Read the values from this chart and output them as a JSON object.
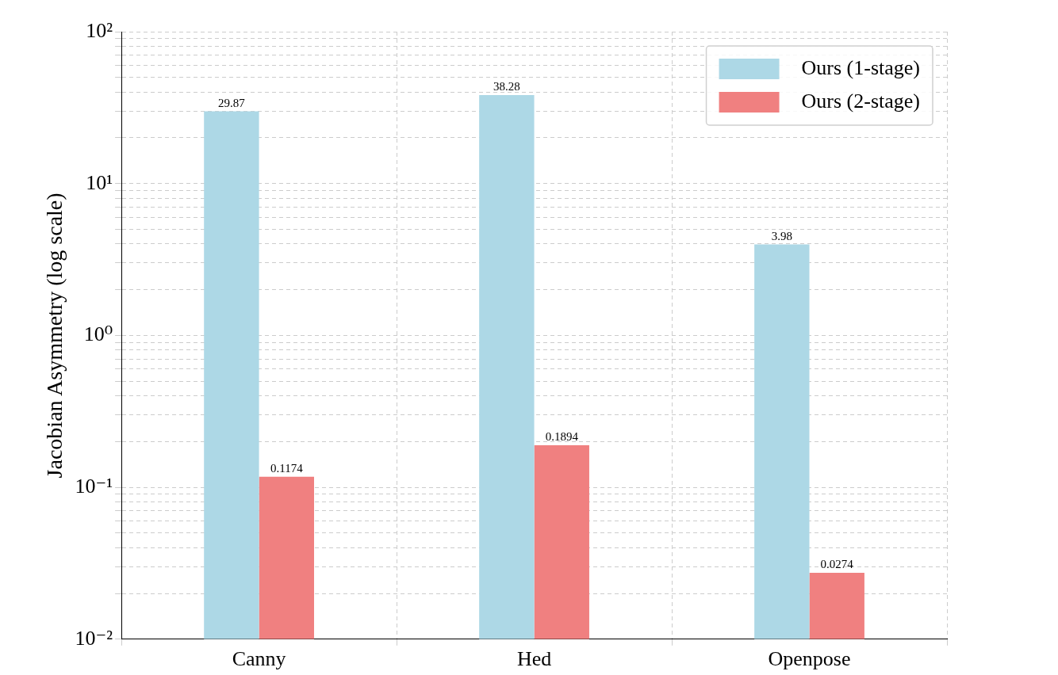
{
  "chart_data": {
    "type": "bar",
    "ylabel": "Jacobian Asymmetry (log scale)",
    "categories": [
      "Canny",
      "Hed",
      "Openpose"
    ],
    "series": [
      {
        "name": "Ours (1-stage)",
        "color": "#add8e6",
        "values": [
          29.87,
          38.28,
          3.98
        ]
      },
      {
        "name": "Ours (2-stage)",
        "color": "#f08080",
        "values": [
          0.1174,
          0.1894,
          0.0274
        ]
      }
    ],
    "log": "y",
    "ylim": [
      0.01,
      100
    ],
    "yticks": [
      {
        "value": 0.01,
        "label": "10⁻²"
      },
      {
        "value": 0.02,
        "label": null
      },
      {
        "value": 0.03,
        "label": null
      },
      {
        "value": 0.04,
        "label": null
      },
      {
        "value": 0.05,
        "label": null
      },
      {
        "value": 0.06,
        "label": null
      },
      {
        "value": 0.07,
        "label": null
      },
      {
        "value": 0.08,
        "label": null
      },
      {
        "value": 0.09,
        "label": null
      },
      {
        "value": 0.1,
        "label": "10⁻¹"
      },
      {
        "value": 0.2,
        "label": null
      },
      {
        "value": 0.3,
        "label": null
      },
      {
        "value": 0.4,
        "label": null
      },
      {
        "value": 0.5,
        "label": null
      },
      {
        "value": 0.6,
        "label": null
      },
      {
        "value": 0.7,
        "label": null
      },
      {
        "value": 0.8,
        "label": null
      },
      {
        "value": 0.9,
        "label": null
      },
      {
        "value": 1,
        "label": "10⁰"
      },
      {
        "value": 2,
        "label": null
      },
      {
        "value": 3,
        "label": null
      },
      {
        "value": 4,
        "label": null
      },
      {
        "value": 5,
        "label": null
      },
      {
        "value": 6,
        "label": null
      },
      {
        "value": 7,
        "label": null
      },
      {
        "value": 8,
        "label": null
      },
      {
        "value": 9,
        "label": null
      },
      {
        "value": 10,
        "label": "10¹"
      },
      {
        "value": 20,
        "label": null
      },
      {
        "value": 30,
        "label": null
      },
      {
        "value": 40,
        "label": null
      },
      {
        "value": 50,
        "label": null
      },
      {
        "value": 60,
        "label": null
      },
      {
        "value": 70,
        "label": null
      },
      {
        "value": 80,
        "label": null
      },
      {
        "value": 90,
        "label": null
      },
      {
        "value": 100,
        "label": "10²"
      }
    ],
    "grid": true,
    "legend": "top right",
    "data_labels": true
  }
}
